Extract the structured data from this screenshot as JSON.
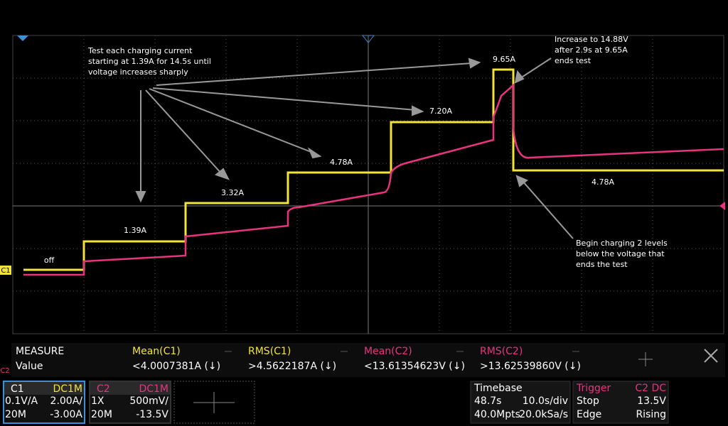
{
  "trace_labels": [
    "off",
    "1.39A",
    "3.32A",
    "4.78A",
    "7.20A",
    "9.65A",
    "4.78A"
  ],
  "notes": [
    [
      "Test each charging current",
      "starting at 1.39A for 14.5s until",
      "voltage increases sharply"
    ],
    [
      "Increase to 14.88V",
      "after 2.9s at 9.65A",
      "ends test"
    ],
    [
      "Begin charging 2 levels",
      "below the voltage that",
      "ends the test"
    ]
  ],
  "channel_markers": [
    "C1",
    "C2"
  ],
  "measure": {
    "title": "MEASURE",
    "row_label": "Value",
    "headers": [
      "Mean(C1)",
      "RMS(C1)",
      "Mean(C2)",
      "RMS(C2)"
    ],
    "values": [
      "<4.0007381A (↓)",
      ">4.5622187A (↓)",
      "<13.61354623V (↓)",
      ">13.62539860V (↓)"
    ]
  },
  "channels": [
    {
      "name": "C1",
      "coupling": "DC1M",
      "probe": "0.1V/A",
      "scale": "2.00A/",
      "bw": "20M",
      "offset": "-3.00A"
    },
    {
      "name": "C2",
      "coupling": "DC1M",
      "probe": "1X",
      "scale": "500mV/",
      "bw": "20M",
      "offset": "-13.5V"
    }
  ],
  "timebase": {
    "title": "Timebase",
    "delay": "48.7s",
    "scale": "10.0s/div",
    "points": "40.0Mpts",
    "rate": "20.0kSa/s"
  },
  "trigger": {
    "title": "Trigger",
    "source": "C2",
    "coupling": "DC",
    "mode": "Stop",
    "level": "13.5V",
    "type": "Edge",
    "slope": "Rising"
  }
}
